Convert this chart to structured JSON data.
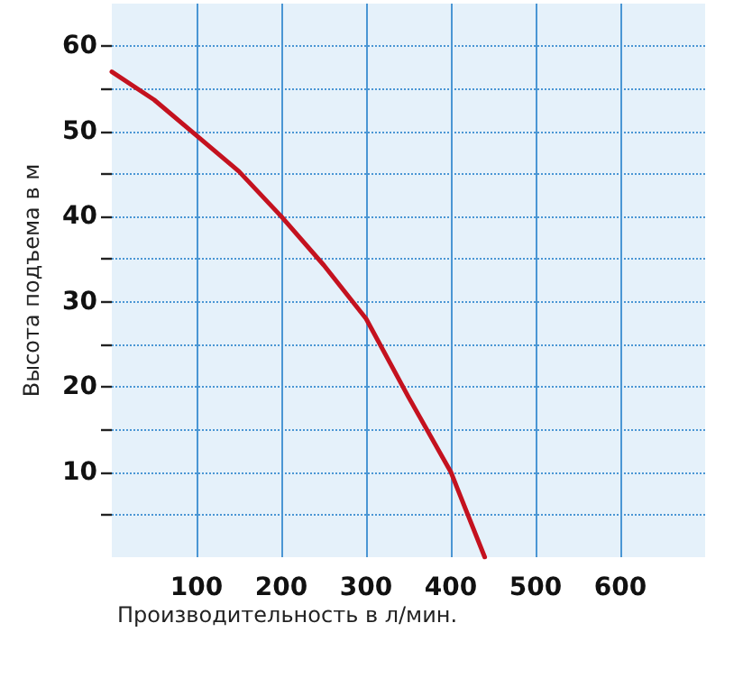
{
  "chart_data": {
    "type": "line",
    "xlabel": "Производительность в л/мин.",
    "ylabel": "Высота подъема в м",
    "x": [
      0,
      50,
      100,
      150,
      200,
      250,
      300,
      350,
      400,
      440
    ],
    "series": [
      {
        "color": "#c4121f",
        "values": [
          57,
          53.7,
          49.5,
          45.3,
          40,
          34.3,
          28,
          18.8,
          10,
          0
        ]
      }
    ],
    "xlim": [
      0,
      700
    ],
    "xticks": [
      100,
      200,
      300,
      400,
      500,
      600
    ],
    "ylim": [
      0,
      65
    ],
    "yticks": [
      {
        "value": 5,
        "label": null
      },
      10,
      {
        "value": 15,
        "label": null
      },
      20,
      {
        "value": 25,
        "label": null
      },
      30,
      {
        "value": 35,
        "label": null
      },
      40,
      {
        "value": 45,
        "label": null
      },
      50,
      {
        "value": 55,
        "label": null
      },
      60
    ],
    "grid": true,
    "marker": "none",
    "line_style": "solid"
  }
}
